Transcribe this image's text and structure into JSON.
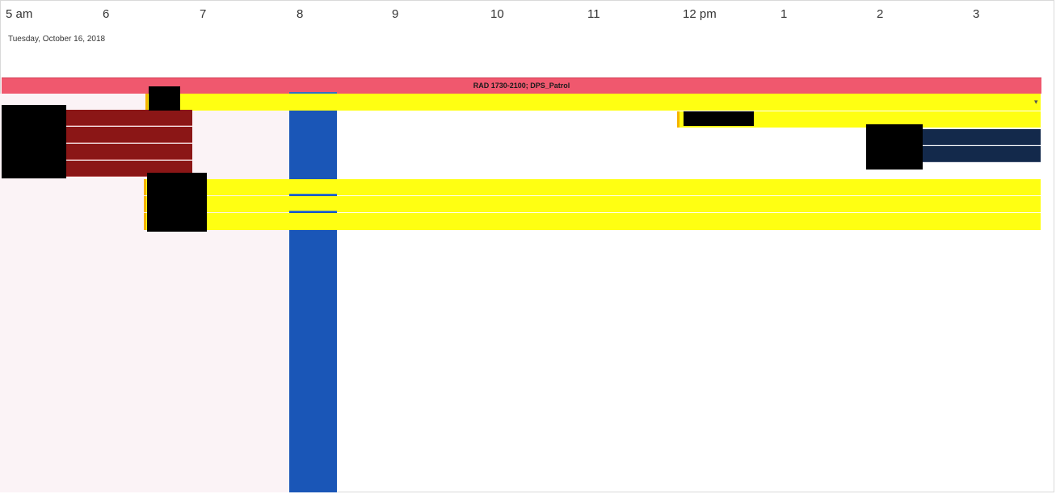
{
  "timeline": {
    "hours": [
      "5 am",
      "6",
      "7",
      "8",
      "9",
      "10",
      "11",
      "12 pm",
      "1",
      "2",
      "3"
    ],
    "date": "Tuesday, October 16, 2018"
  },
  "events": {
    "top_banner": "RAD 1730-2100; DPS_Patrol"
  },
  "colors": {
    "banner": "#f0586e",
    "yellow": "#ffff12",
    "dark_red": "#8b1616",
    "navy": "#13294b",
    "current_time": "#1a56b7",
    "off_hours": "#fbf3f6"
  },
  "icons": {
    "overflow": "chevron-icon"
  }
}
